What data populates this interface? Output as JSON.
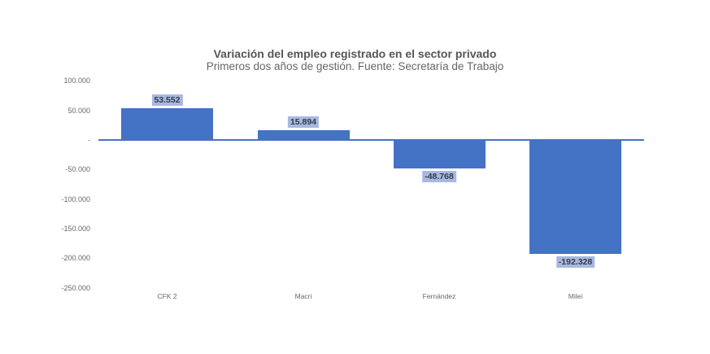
{
  "chart_data": {
    "type": "bar",
    "title": "Variación del empleo registrado en el sector privado",
    "subtitle": "Primeros dos años de gestión. Fuente: Secretaría de Trabajo",
    "categories": [
      "CFK 2",
      "Macri",
      "Fernández",
      "Milei"
    ],
    "values": [
      53552,
      15894,
      -48768,
      -192328
    ],
    "value_labels": [
      "53.552",
      "15.894",
      "-48.768",
      "-192.328"
    ],
    "xlabel": "",
    "ylabel": "",
    "ylim": [
      -250000,
      100000
    ],
    "yticks": [
      100000,
      50000,
      0,
      -50000,
      -100000,
      -150000,
      -200000,
      -250000
    ],
    "ytick_labels": [
      "100.000",
      "50.000",
      "-",
      "-50.000",
      "-100.000",
      "-150.000",
      "-200.000",
      "-250.000"
    ],
    "grid": false,
    "legend": null,
    "bar_color": "#4472c4",
    "label_bg_color": "#a8b9e0"
  }
}
